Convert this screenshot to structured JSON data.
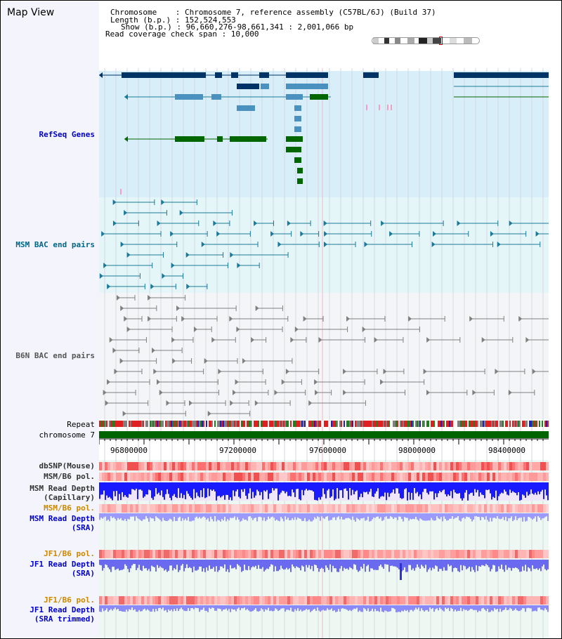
{
  "header": {
    "title": "Map View",
    "chromosome": "Chromosome    : Chromosome 7, reference assembly (C57BL/6J) (Build 37)",
    "length": "Length (b.p.) : 152,524,553",
    "show": "Show (b.p.) : 96,660,276-98,661,341 : 2,001,066 bp",
    "coverage": "Read coverage check span : 10,000"
  },
  "tracks": {
    "refseq": "RefSeq Genes",
    "msm_bac": "MSM BAC end pairs",
    "b6n_bac": "B6N BAC end pairs",
    "repeat": "Repeat",
    "chromosome": "chromosome 7",
    "dbsnp": "dbSNP(Mouse)",
    "msm_b6_pol_1": "MSM/B6 pol.",
    "msm_depth_cap_1": "MSM Read Depth",
    "msm_depth_cap_2": "(Capillary)",
    "msm_b6_pol_2": "MSM/B6 pol.",
    "msm_depth_sra_1": "MSM Read Depth",
    "msm_depth_sra_2": "(SRA)",
    "jf1_pol_1": "JF1/B6 pol.",
    "jf1_depth_1": "JF1 Read Depth",
    "jf1_depth_2": "(SRA)",
    "jf1_pol_2": "JF1/B6 pol.",
    "jf1_trim_1": "JF1 Read Depth",
    "jf1_trim_2": "(SRA trimmed)"
  },
  "axis": {
    "ticks": [
      "96800000",
      "97200000",
      "97600000",
      "98000000",
      "98400000"
    ]
  },
  "colors": {
    "refseq_bg": "#d8eef8",
    "msm_bac_bg": "#e4f6f8",
    "b6n_bac_bg": "#f3f4f6",
    "depth_bg": "#e8f6ee",
    "chrom_bar": "#006400",
    "gene_dark": "#003366",
    "gene_mid": "#4b91bf",
    "gene_green": "#006600",
    "bac_teal": "#1b7a99",
    "bac_gray": "#808080",
    "label_blue": "#0000cc",
    "label_teal": "#006688",
    "label_orange": "#cc8800"
  }
}
